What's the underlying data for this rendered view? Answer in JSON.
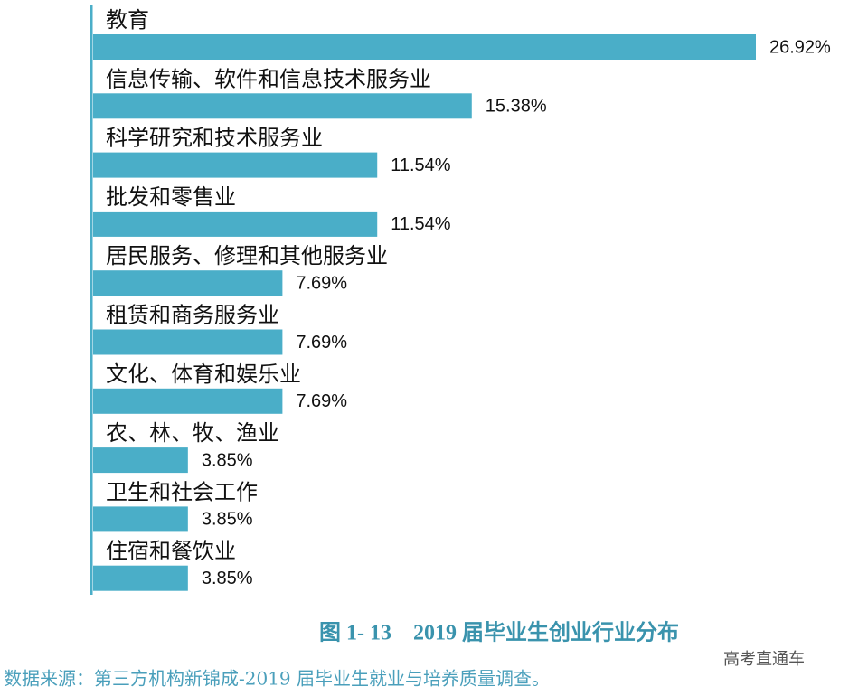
{
  "chart_data": {
    "type": "bar",
    "orientation": "horizontal",
    "title": "图 1- 13    2019 届毕业生创业行业分布",
    "source": "数据来源：第三方机构新锦成-2019 届毕业生就业与培养质量调查。",
    "watermark": "高考直通车",
    "categories": [
      "教育",
      "信息传输、软件和信息技术服务业",
      "科学研究和技术服务业",
      "批发和零售业",
      "居民服务、修理和其他服务业",
      "租赁和商务服务业",
      "文化、体育和娱乐业",
      "农、林、牧、渔业",
      "卫生和社会工作",
      "住宿和餐饮业"
    ],
    "values": [
      26.92,
      15.38,
      11.54,
      11.54,
      7.69,
      7.69,
      7.69,
      3.85,
      3.85,
      3.85
    ],
    "value_labels": [
      "26.92%",
      "15.38%",
      "11.54%",
      "11.54%",
      "7.69%",
      "7.69%",
      "7.69%",
      "3.85%",
      "3.85%",
      "3.85%"
    ],
    "color": "#4aaec8"
  }
}
